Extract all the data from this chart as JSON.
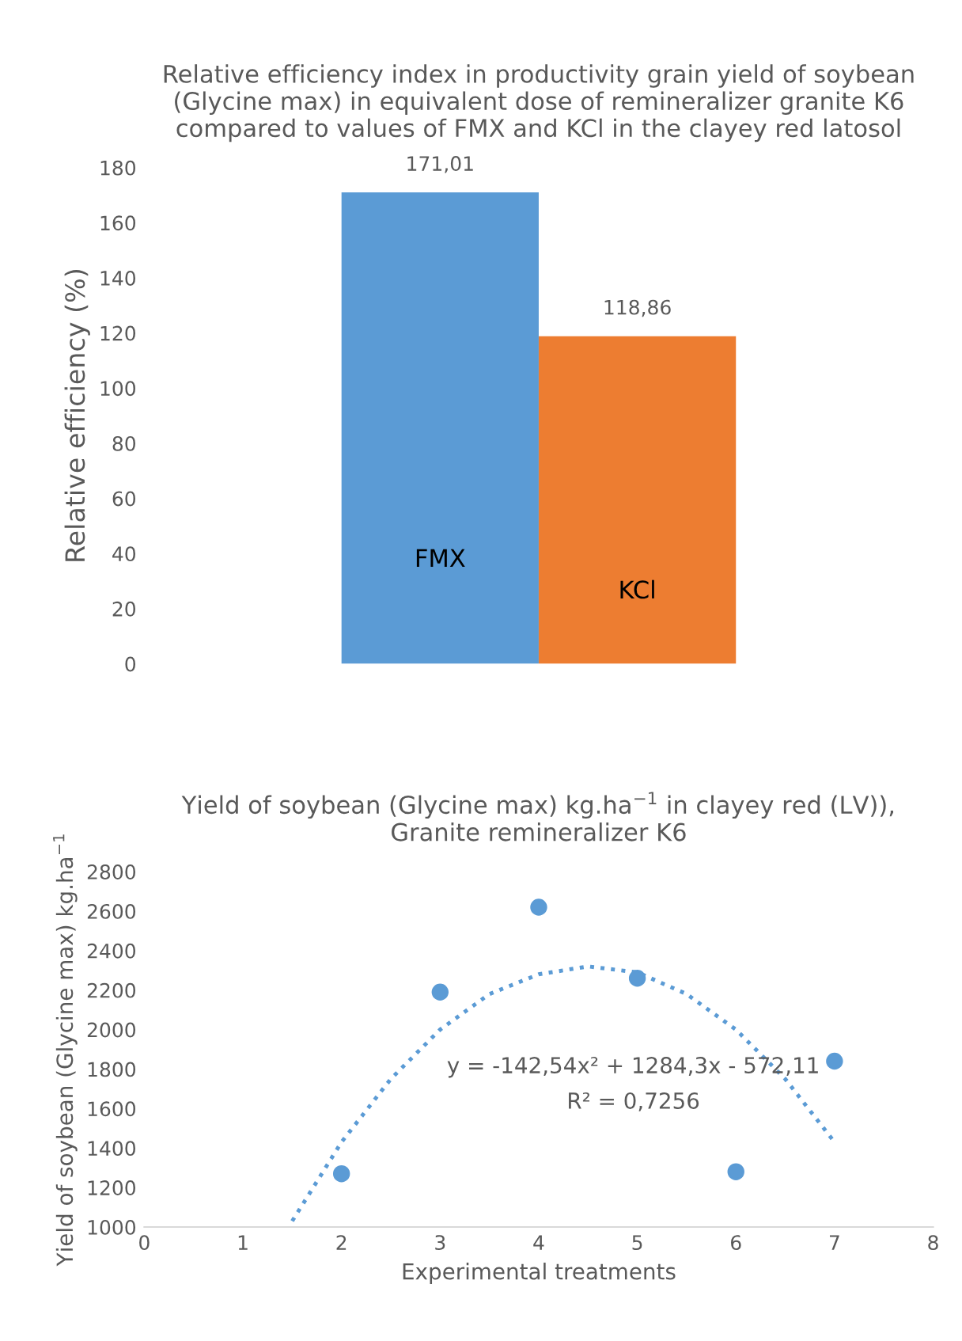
{
  "chart_data": [
    {
      "type": "bar",
      "title": "Relative efficiency index in productivity grain yield of soybean\n(Glycine max) in equivalent dose of remineralizer granite K6\ncompared to values of FMX and KCl in the clayey red latosol",
      "ylabel": "Relative efficiency (%)",
      "categories": [
        null
      ],
      "series": [
        {
          "name": "FMX",
          "color": "#5b9bd5",
          "values": [
            171.01
          ],
          "value_labels": [
            "171,01"
          ]
        },
        {
          "name": "KCl",
          "color": "#ed7d31",
          "values": [
            118.86
          ],
          "value_labels": [
            "118,86"
          ]
        }
      ],
      "ylim": [
        0,
        180
      ],
      "yticks": [
        0,
        20,
        40,
        60,
        80,
        100,
        120,
        140,
        160,
        180
      ],
      "grid": false
    },
    {
      "type": "scatter",
      "title": "Yield of soybean (Glycine max) kg.ha$^{−1}$ in clayey red (LV)),\nGranite remineralizer K6",
      "xlabel": "Experimental treatments",
      "ylabel": "Yield of soybean (Glycine max) kg.ha$^{−1}$",
      "series": [
        {
          "color": "#5b9bd5",
          "x": [
            2,
            3,
            4,
            5,
            6,
            7
          ],
          "values": [
            1270,
            2190,
            2620,
            2260,
            1280,
            1840
          ],
          "marker": "circle"
        },
        {
          "type": "line",
          "color": "#5b9bd5",
          "line_style": "dotted",
          "marker": "none",
          "x": [
            1.5,
            2,
            2.5,
            3,
            3.5,
            4,
            4.5,
            5,
            5.5,
            6,
            6.5,
            7
          ],
          "values": [
            1030,
            1430,
            1750,
            2000,
            2180,
            2280,
            2320,
            2290,
            2180,
            2000,
            1750,
            1430
          ]
        }
      ],
      "annotations": [
        "y = -142,54x² + 1284,3x - 572,11",
        "R² = 0,7256"
      ],
      "xlim": [
        0,
        8
      ],
      "xticks": [
        0,
        1,
        2,
        3,
        4,
        5,
        6,
        7,
        8
      ],
      "ylim": [
        1000,
        2800
      ],
      "yticks": [
        1000,
        1200,
        1400,
        1600,
        1800,
        2000,
        2200,
        2400,
        2600,
        2800
      ],
      "grid": false
    }
  ]
}
